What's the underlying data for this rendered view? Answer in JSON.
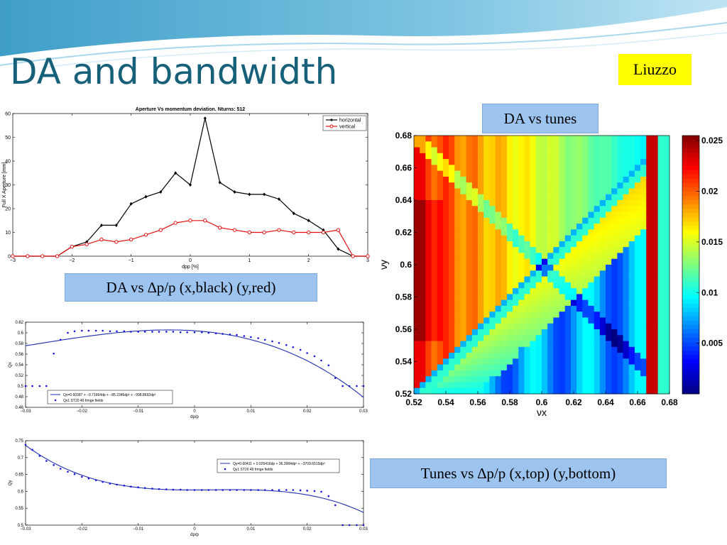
{
  "slide": {
    "title": "DA and bandwidth",
    "author": "Liuzzo",
    "label_da_dpp": "DA vs ∆p/p (x,black) (y,red)",
    "label_da_tunes": "DA vs tunes",
    "label_tunes_dpp": "Tunes vs ∆p/p (x,top) (y,bottom)"
  },
  "chart_data": [
    {
      "type": "line",
      "title": "Aperture Vs momentum deviation. Nturns: 512",
      "xlabel": "dpp [%]",
      "ylabel": "Full X Aperture [mm]",
      "xlim": [
        -3,
        3
      ],
      "ylim": [
        0,
        60
      ],
      "xticks": [
        "−3",
        "−2",
        "−1",
        "0",
        "1",
        "2",
        "3"
      ],
      "yticks": [
        "0",
        "10",
        "20",
        "30",
        "40",
        "50",
        "60"
      ],
      "legend_position": "top-right",
      "x": [
        -3.0,
        -2.75,
        -2.5,
        -2.25,
        -2.0,
        -1.75,
        -1.5,
        -1.25,
        -1.0,
        -0.75,
        -0.5,
        -0.25,
        0.0,
        0.25,
        0.5,
        0.75,
        1.0,
        1.25,
        1.5,
        1.75,
        2.0,
        2.25,
        2.5,
        2.75,
        3.0
      ],
      "series": [
        {
          "name": "horizontal",
          "color": "#000000",
          "values": [
            0,
            0,
            0,
            0,
            4,
            6,
            13,
            13,
            22,
            25,
            27,
            35,
            30,
            58,
            31,
            27,
            26,
            26,
            24,
            18,
            15,
            11,
            3,
            0,
            0
          ]
        },
        {
          "name": "vertical",
          "color": "#e01010",
          "values": [
            0,
            0,
            0,
            0,
            4,
            5,
            7,
            6,
            7,
            9,
            11,
            14,
            15,
            15,
            12,
            11,
            10,
            10,
            11,
            10,
            10,
            10,
            11,
            0,
            0
          ]
        }
      ]
    },
    {
      "type": "heatmap",
      "xlabel": "νx",
      "ylabel": "νy",
      "xlim": [
        0.52,
        0.68
      ],
      "ylim": [
        0.52,
        0.68
      ],
      "xticks": [
        "0.52",
        "0.54",
        "0.56",
        "0.58",
        "0.6",
        "0.62",
        "0.64",
        "0.66",
        "0.68"
      ],
      "yticks": [
        "0.52",
        "0.54",
        "0.56",
        "0.58",
        "0.6",
        "0.62",
        "0.64",
        "0.66",
        "0.68"
      ],
      "colorbar_ticks": [
        "0.005",
        "0.01",
        "0.015",
        "0.02",
        "0.025"
      ],
      "colorbar_range": [
        0,
        0.0255
      ],
      "colormap": "jet"
    },
    {
      "type": "scatter",
      "xlabel": "dp/p",
      "ylabel": "Qx",
      "xlim": [
        -0.03,
        0.03
      ],
      "ylim": [
        0.46,
        0.62
      ],
      "xticks": [
        "−0.03",
        "−0.02",
        "−0.01",
        "0",
        "0.01",
        "0.02",
        "0.03"
      ],
      "yticks": [
        "0.46",
        "0.48",
        "0.5",
        "0.52",
        "0.54",
        "0.56",
        "0.58",
        "0.6",
        "0.62"
      ],
      "legend_position": "bottom-left",
      "fit": {
        "name": "Qx=0.60387 + −0.71664dp + −85.2346dp² + −998.8692dp³",
        "color": "#1f2fb0",
        "coeffs": [
          0.60387,
          -0.71664,
          -85.2346,
          -998.8692
        ]
      },
      "points_name": "Qx1 ST20 49 fringe fields",
      "x": [
        -0.03,
        -0.0288,
        -0.0275,
        -0.0263,
        -0.025,
        -0.0238,
        -0.0225,
        -0.0213,
        -0.02,
        -0.0188,
        -0.0175,
        -0.0163,
        -0.015,
        -0.0138,
        -0.0125,
        -0.0113,
        -0.01,
        -0.0088,
        -0.0075,
        -0.0063,
        -0.005,
        -0.0038,
        -0.0025,
        -0.0013,
        0.0,
        0.0013,
        0.0025,
        0.0038,
        0.005,
        0.0063,
        0.0075,
        0.0088,
        0.01,
        0.0113,
        0.0125,
        0.0138,
        0.015,
        0.0163,
        0.0175,
        0.0188,
        0.02,
        0.0213,
        0.0225,
        0.0238,
        0.025,
        0.0263,
        0.0275,
        0.0288,
        0.03
      ],
      "values": [
        0.5,
        0.5,
        0.5,
        0.5,
        0.561,
        0.587,
        0.6,
        0.603,
        0.604,
        0.604,
        0.604,
        0.604,
        0.603,
        0.603,
        0.603,
        0.602,
        0.602,
        0.602,
        0.602,
        0.602,
        0.602,
        0.602,
        0.601,
        0.601,
        0.601,
        0.601,
        0.6,
        0.599,
        0.598,
        0.597,
        0.596,
        0.594,
        0.592,
        0.59,
        0.587,
        0.584,
        0.581,
        0.577,
        0.573,
        0.568,
        0.562,
        0.556,
        0.548,
        0.539,
        0.515,
        0.5,
        0.5,
        0.5,
        0.5
      ]
    },
    {
      "type": "scatter",
      "xlabel": "dp/p",
      "ylabel": "Qy",
      "xlim": [
        -0.03,
        0.03
      ],
      "ylim": [
        0.5,
        0.75
      ],
      "xticks": [
        "−0.03",
        "−0.02",
        "−0.01",
        "0",
        "0.01",
        "0.02",
        "0.03"
      ],
      "yticks": [
        "0.5",
        "0.55",
        "0.6",
        "0.65",
        "0.7",
        "0.75"
      ],
      "legend_position": "top-right",
      "fit": {
        "name": "Qy=0.60411 + 0.026416dp + 36.3984dp² + −3709.6515dp³",
        "color": "#1f2fb0",
        "coeffs": [
          0.60411,
          0.026416,
          36.3984,
          -3709.6515
        ]
      },
      "points_name": "Qy1 ST20 49 fringe fields",
      "x": [
        -0.03,
        -0.0288,
        -0.0275,
        -0.0263,
        -0.025,
        -0.0238,
        -0.0225,
        -0.0213,
        -0.02,
        -0.0188,
        -0.0175,
        -0.0163,
        -0.015,
        -0.0138,
        -0.0125,
        -0.0113,
        -0.01,
        -0.0088,
        -0.0075,
        -0.0063,
        -0.005,
        -0.0038,
        -0.0025,
        -0.0013,
        0.0,
        0.0013,
        0.0025,
        0.0038,
        0.005,
        0.0063,
        0.0075,
        0.0088,
        0.01,
        0.0113,
        0.0125,
        0.0138,
        0.015,
        0.0163,
        0.0175,
        0.0188,
        0.02,
        0.0213,
        0.0225,
        0.0238,
        0.025,
        0.0263,
        0.0275,
        0.0288,
        0.03
      ],
      "values": [
        0.738,
        0.723,
        0.705,
        0.69,
        0.678,
        0.667,
        0.658,
        0.651,
        0.643,
        0.638,
        0.633,
        0.628,
        0.623,
        0.62,
        0.617,
        0.614,
        0.612,
        0.61,
        0.608,
        0.607,
        0.606,
        0.605,
        0.605,
        0.604,
        0.604,
        0.604,
        0.604,
        0.604,
        0.604,
        0.604,
        0.604,
        0.604,
        0.604,
        0.604,
        0.604,
        0.604,
        0.604,
        0.604,
        0.604,
        0.603,
        0.602,
        0.601,
        0.599,
        0.586,
        0.559,
        0.5,
        0.5,
        0.5,
        0.5
      ]
    }
  ]
}
